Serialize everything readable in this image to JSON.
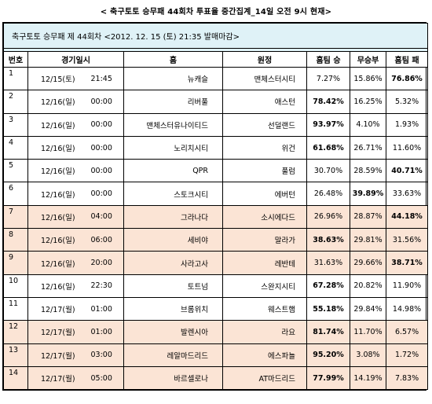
{
  "title": "< 축구토토 승무패 44회차 투표율 중간집계_14일 오전 9시 현재>",
  "banner": "축구토토 승무패 제 44회차 <2012. 12. 15 (토) 21:35 발매마감>",
  "headers": {
    "no": "번호",
    "datetime": "경기일시",
    "home": "홈",
    "away": "원정",
    "home_win": "홈팀 승",
    "draw": "무승부",
    "home_loss": "홈팀 패"
  },
  "rows": [
    {
      "no": "1",
      "date": "12/15(토)",
      "time": "21:45",
      "home": "뉴캐슬",
      "away": "맨체스터시티",
      "win": "7.27%",
      "draw": "15.86%",
      "loss": "76.86%",
      "bold": "loss",
      "shaded": false
    },
    {
      "no": "2",
      "date": "12/16(일)",
      "time": "00:00",
      "home": "리버풀",
      "away": "애스턴",
      "win": "78.42%",
      "draw": "16.25%",
      "loss": "5.32%",
      "bold": "win",
      "shaded": false
    },
    {
      "no": "3",
      "date": "12/16(일)",
      "time": "00:00",
      "home": "맨체스터유나이티드",
      "away": "선덜랜드",
      "win": "93.97%",
      "draw": "4.10%",
      "loss": "1.93%",
      "bold": "win",
      "shaded": false
    },
    {
      "no": "4",
      "date": "12/16(일)",
      "time": "00:00",
      "home": "노리치시티",
      "away": "위건",
      "win": "61.68%",
      "draw": "26.71%",
      "loss": "11.60%",
      "bold": "win",
      "shaded": false
    },
    {
      "no": "5",
      "date": "12/16(일)",
      "time": "00:00",
      "home": "QPR",
      "away": "풀럼",
      "win": "30.70%",
      "draw": "28.59%",
      "loss": "40.71%",
      "bold": "loss",
      "shaded": false
    },
    {
      "no": "6",
      "date": "12/16(일)",
      "time": "00:00",
      "home": "스토크시티",
      "away": "에버턴",
      "win": "26.48%",
      "draw": "39.89%",
      "loss": "33.63%",
      "bold": "draw",
      "shaded": false
    },
    {
      "no": "7",
      "date": "12/16(일)",
      "time": "04:00",
      "home": "그라나다",
      "away": "소시에다드",
      "win": "26.96%",
      "draw": "28.87%",
      "loss": "44.18%",
      "bold": "loss",
      "shaded": true
    },
    {
      "no": "8",
      "date": "12/16(일)",
      "time": "06:00",
      "home": "세비야",
      "away": "말라가",
      "win": "38.63%",
      "draw": "29.81%",
      "loss": "31.56%",
      "bold": "win",
      "shaded": true
    },
    {
      "no": "9",
      "date": "12/16(일)",
      "time": "20:00",
      "home": "사라고사",
      "away": "레반테",
      "win": "31.63%",
      "draw": "29.66%",
      "loss": "38.71%",
      "bold": "loss",
      "shaded": true
    },
    {
      "no": "10",
      "date": "12/16(일)",
      "time": "22:30",
      "home": "토트넘",
      "away": "스완지시티",
      "win": "67.28%",
      "draw": "20.82%",
      "loss": "11.90%",
      "bold": "win",
      "shaded": false
    },
    {
      "no": "11",
      "date": "12/17(월)",
      "time": "01:00",
      "home": "브롬위치",
      "away": "웨스트햄",
      "win": "55.18%",
      "draw": "29.84%",
      "loss": "14.98%",
      "bold": "win",
      "shaded": false
    },
    {
      "no": "12",
      "date": "12/17(월)",
      "time": "01:00",
      "home": "발렌시아",
      "away": "라요",
      "win": "81.74%",
      "draw": "11.70%",
      "loss": "6.57%",
      "bold": "win",
      "shaded": true
    },
    {
      "no": "13",
      "date": "12/17(월)",
      "time": "03:00",
      "home": "레알마드리드",
      "away": "에스파뇰",
      "win": "95.20%",
      "draw": "3.08%",
      "loss": "1.72%",
      "bold": "win",
      "shaded": true
    },
    {
      "no": "14",
      "date": "12/17(월)",
      "time": "05:00",
      "home": "바르셀로나",
      "away": "AT마드리드",
      "win": "77.99%",
      "draw": "14.19%",
      "loss": "7.83%",
      "bold": "win",
      "shaded": true
    }
  ],
  "colors": {
    "banner_bg": "#dff2f7",
    "shaded_row_bg": "#fbe4d5",
    "border": "#000000"
  }
}
